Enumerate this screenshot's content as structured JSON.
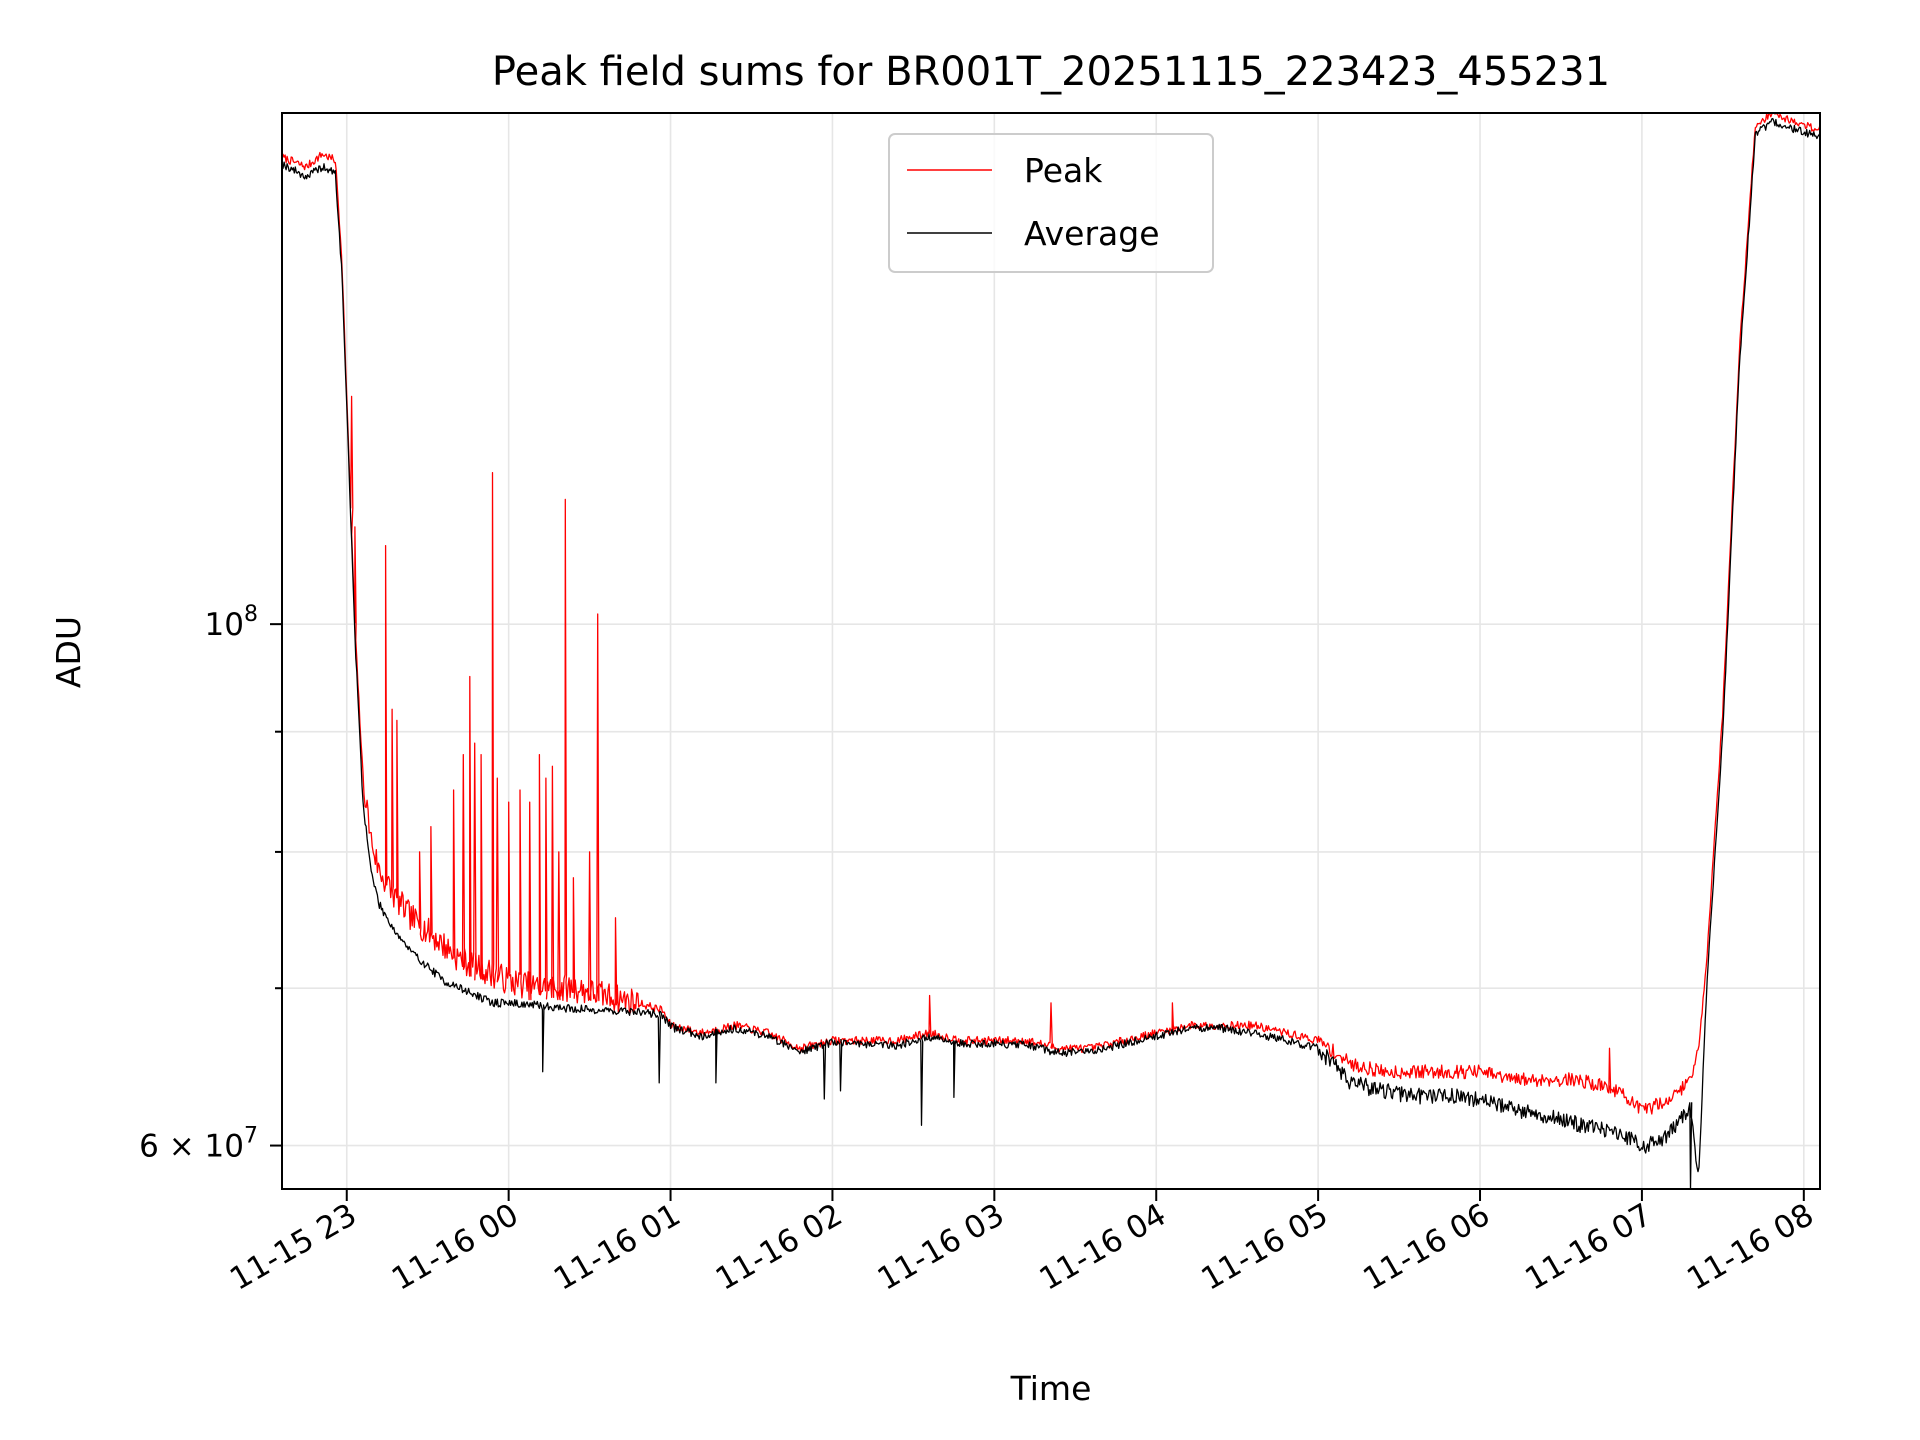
{
  "chart_data": {
    "type": "line",
    "title": "Peak field sums for BR001T_20251115_223423_455231",
    "xlabel": "Time",
    "ylabel": "ADU",
    "yscale": "log",
    "ylim": [
      57500000,
      165000000
    ],
    "xlim_hours": [
      22.6,
      32.1
    ],
    "grid": true,
    "legend_position": "upper center",
    "x_ticks": [
      {
        "hour": 23,
        "label": "11-15 23"
      },
      {
        "hour": 24,
        "label": "11-16 00"
      },
      {
        "hour": 25,
        "label": "11-16 01"
      },
      {
        "hour": 26,
        "label": "11-16 02"
      },
      {
        "hour": 27,
        "label": "11-16 03"
      },
      {
        "hour": 28,
        "label": "11-16 04"
      },
      {
        "hour": 29,
        "label": "11-16 05"
      },
      {
        "hour": 30,
        "label": "11-16 06"
      },
      {
        "hour": 31,
        "label": "11-16 07"
      },
      {
        "hour": 32,
        "label": "11-16 08"
      }
    ],
    "y_major_ticks": [
      {
        "value": 100000000,
        "base": "10",
        "exp": "8",
        "prefix": ""
      },
      {
        "value": 60000000,
        "base": "10",
        "exp": "7",
        "prefix": "6 × "
      }
    ],
    "y_minor_ticks": [
      70000000,
      80000000,
      90000000
    ],
    "series": [
      {
        "name": "Peak",
        "color": "#ff0000",
        "x_hours": [
          22.6,
          22.75,
          22.85,
          22.93,
          22.97,
          23.0,
          23.05,
          23.1,
          23.15,
          23.2,
          23.3,
          23.4,
          23.5,
          23.6,
          23.7,
          23.8,
          23.9,
          24.0,
          24.2,
          24.4,
          24.6,
          24.8,
          24.95,
          25.0,
          25.2,
          25.4,
          25.6,
          25.8,
          26.0,
          26.2,
          26.4,
          26.6,
          26.8,
          27.0,
          27.2,
          27.4,
          27.6,
          27.8,
          28.0,
          28.2,
          28.4,
          28.6,
          28.8,
          29.0,
          29.2,
          29.4,
          29.6,
          29.8,
          30.0,
          30.2,
          30.4,
          30.6,
          30.8,
          30.9,
          31.0,
          31.1,
          31.2,
          31.3,
          31.35,
          31.4,
          31.5,
          31.6,
          31.7,
          31.8,
          31.9,
          32.0,
          32.1
        ],
        "y": [
          158000000,
          156500000,
          158500000,
          157500000,
          143000000,
          125000000,
          100000000,
          86000000,
          81000000,
          78500000,
          76500000,
          75000000,
          74000000,
          73000000,
          72000000,
          71500000,
          71000000,
          70500000,
          70000000,
          70000000,
          69500000,
          69000000,
          68500000,
          67500000,
          67000000,
          67500000,
          67000000,
          66000000,
          66500000,
          66500000,
          66500000,
          67000000,
          66500000,
          66500000,
          66500000,
          66000000,
          66000000,
          66500000,
          67000000,
          67500000,
          67500000,
          67500000,
          67000000,
          66500000,
          65000000,
          64500000,
          64500000,
          64500000,
          64500000,
          64000000,
          64000000,
          64000000,
          63500000,
          63000000,
          62000000,
          62500000,
          63000000,
          64000000,
          66000000,
          72000000,
          92000000,
          130000000,
          163000000,
          165000000,
          164000000,
          163000000,
          162500000
        ],
        "spikes": [
          {
            "hour": 23.03,
            "value": 125000000
          },
          {
            "hour": 23.05,
            "value": 110000000
          },
          {
            "hour": 23.24,
            "value": 108000000
          },
          {
            "hour": 23.28,
            "value": 92000000
          },
          {
            "hour": 23.31,
            "value": 91000000
          },
          {
            "hour": 23.45,
            "value": 80000000
          },
          {
            "hour": 23.52,
            "value": 82000000
          },
          {
            "hour": 23.66,
            "value": 85000000
          },
          {
            "hour": 23.72,
            "value": 88000000
          },
          {
            "hour": 23.76,
            "value": 95000000
          },
          {
            "hour": 23.79,
            "value": 89000000
          },
          {
            "hour": 23.83,
            "value": 88000000
          },
          {
            "hour": 23.9,
            "value": 116000000
          },
          {
            "hour": 23.93,
            "value": 86000000
          },
          {
            "hour": 24.0,
            "value": 84000000
          },
          {
            "hour": 24.07,
            "value": 85000000
          },
          {
            "hour": 24.13,
            "value": 84000000
          },
          {
            "hour": 24.19,
            "value": 88000000
          },
          {
            "hour": 24.23,
            "value": 86000000
          },
          {
            "hour": 24.27,
            "value": 87000000
          },
          {
            "hour": 24.31,
            "value": 80000000
          },
          {
            "hour": 24.35,
            "value": 113000000
          },
          {
            "hour": 24.4,
            "value": 78000000
          },
          {
            "hour": 24.5,
            "value": 80000000
          },
          {
            "hour": 24.55,
            "value": 101000000
          },
          {
            "hour": 24.66,
            "value": 75000000
          },
          {
            "hour": 26.6,
            "value": 69500000
          },
          {
            "hour": 27.35,
            "value": 69000000
          },
          {
            "hour": 28.1,
            "value": 69000000
          },
          {
            "hour": 30.8,
            "value": 66000000
          }
        ]
      },
      {
        "name": "Average",
        "color": "#000000",
        "x_hours": [
          22.6,
          22.75,
          22.85,
          22.93,
          22.97,
          23.0,
          23.05,
          23.1,
          23.15,
          23.2,
          23.3,
          23.4,
          23.5,
          23.6,
          23.7,
          23.8,
          23.9,
          24.0,
          24.2,
          24.4,
          24.6,
          24.8,
          24.95,
          25.0,
          25.2,
          25.4,
          25.6,
          25.8,
          26.0,
          26.2,
          26.4,
          26.6,
          26.8,
          27.0,
          27.2,
          27.4,
          27.6,
          27.8,
          28.0,
          28.2,
          28.4,
          28.6,
          28.8,
          29.0,
          29.2,
          29.4,
          29.6,
          29.8,
          30.0,
          30.2,
          30.4,
          30.6,
          30.8,
          30.9,
          31.0,
          31.1,
          31.2,
          31.3,
          31.35,
          31.4,
          31.5,
          31.6,
          31.7,
          31.8,
          31.9,
          32.0,
          32.1
        ],
        "y": [
          157000000,
          155000000,
          156500000,
          155500000,
          141000000,
          124000000,
          99000000,
          84000000,
          78500000,
          76000000,
          74000000,
          72500000,
          71500000,
          70500000,
          70000000,
          69500000,
          69000000,
          69000000,
          68800000,
          68600000,
          68500000,
          68400000,
          68200000,
          67400000,
          66800000,
          67300000,
          66800000,
          65800000,
          66400000,
          66300000,
          66200000,
          66700000,
          66300000,
          66300000,
          66200000,
          65700000,
          65800000,
          66300000,
          66800000,
          67300000,
          67300000,
          67000000,
          66500000,
          66000000,
          63800000,
          63300000,
          63000000,
          63000000,
          62800000,
          62200000,
          61800000,
          61300000,
          60800000,
          60500000,
          60000000,
          60200000,
          61000000,
          62200000,
          58000000,
          70000000,
          90000000,
          128000000,
          161500000,
          163500000,
          162800000,
          161800000,
          161300000
        ],
        "spikes": [
          {
            "hour": 24.21,
            "value": 64500000
          },
          {
            "hour": 24.93,
            "value": 63800000
          },
          {
            "hour": 25.28,
            "value": 63800000
          },
          {
            "hour": 25.95,
            "value": 62800000
          },
          {
            "hour": 26.05,
            "value": 63300000
          },
          {
            "hour": 26.55,
            "value": 61200000
          },
          {
            "hour": 26.75,
            "value": 62900000
          },
          {
            "hour": 31.3,
            "value": 57500000
          }
        ]
      }
    ]
  }
}
